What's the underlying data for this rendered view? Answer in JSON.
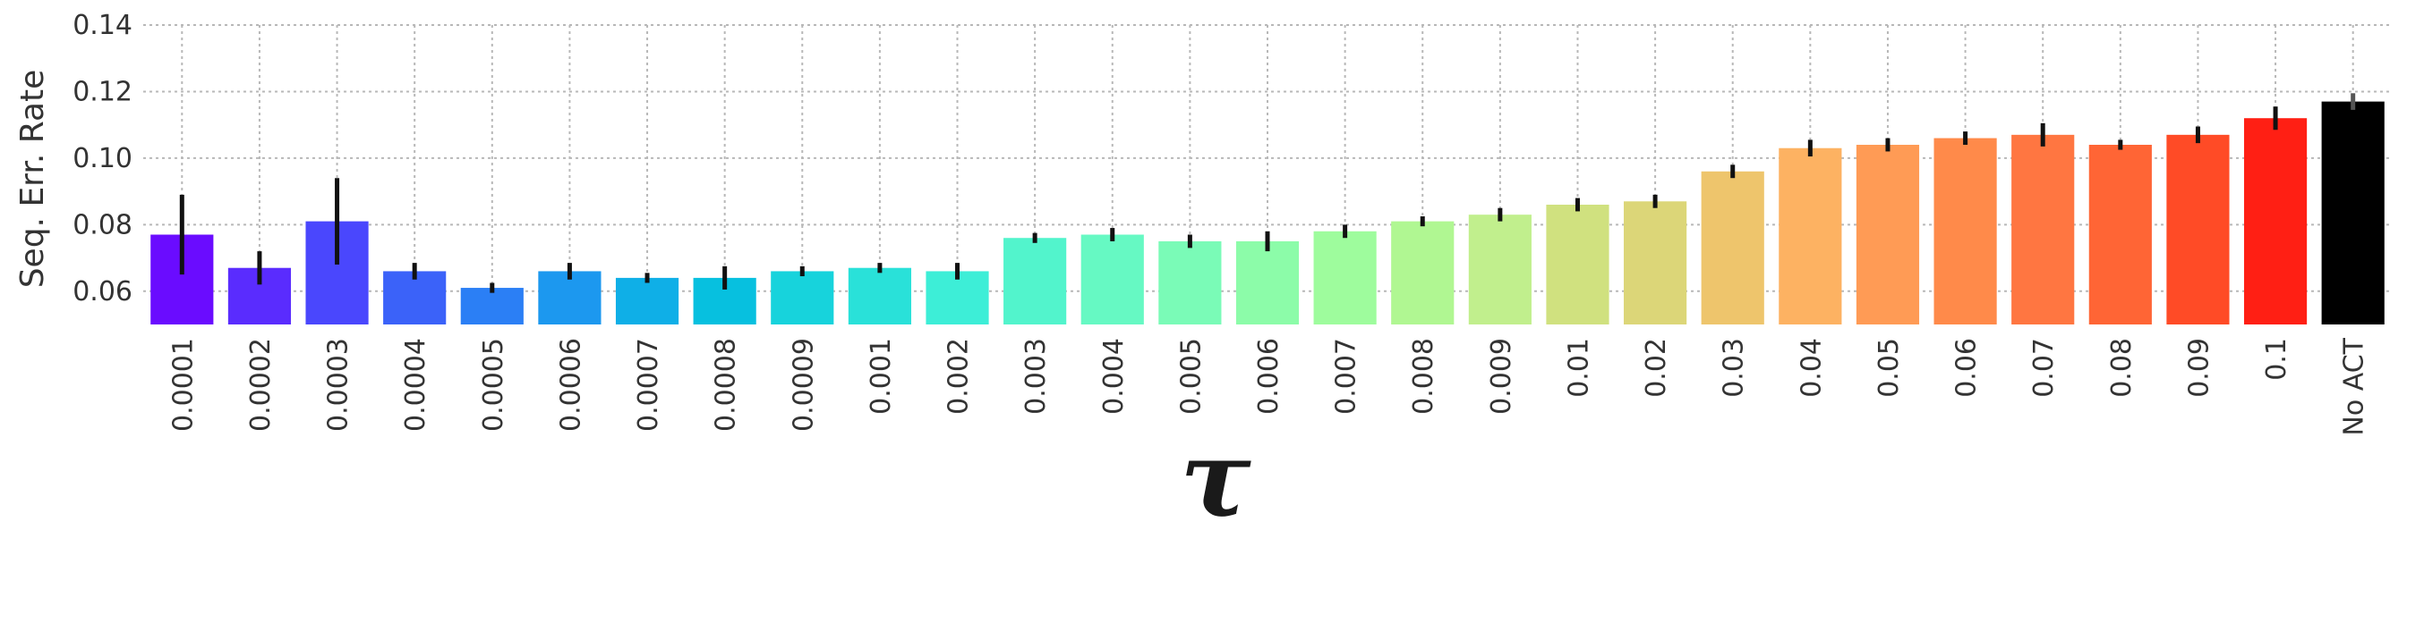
{
  "chart_data": {
    "type": "bar",
    "title": "",
    "xlabel": "τ",
    "ylabel": "Seq. Err. Rate",
    "ylim": [
      0.05,
      0.14
    ],
    "yticks": [
      0.06,
      0.08,
      0.1,
      0.12,
      0.14
    ],
    "ytick_labels": [
      "0.06",
      "0.08",
      "0.10",
      "0.12",
      "0.14"
    ],
    "grid": true,
    "categories": [
      "0.0001",
      "0.0002",
      "0.0003",
      "0.0004",
      "0.0005",
      "0.0006",
      "0.0007",
      "0.0008",
      "0.0009",
      "0.001",
      "0.002",
      "0.003",
      "0.004",
      "0.005",
      "0.006",
      "0.007",
      "0.008",
      "0.009",
      "0.01",
      "0.02",
      "0.03",
      "0.04",
      "0.05",
      "0.06",
      "0.07",
      "0.08",
      "0.09",
      "0.1",
      "No ACT"
    ],
    "values": [
      0.077,
      0.067,
      0.081,
      0.066,
      0.061,
      0.066,
      0.064,
      0.064,
      0.066,
      0.067,
      0.066,
      0.076,
      0.077,
      0.075,
      0.075,
      0.078,
      0.081,
      0.083,
      0.086,
      0.087,
      0.096,
      0.103,
      0.104,
      0.106,
      0.107,
      0.104,
      0.107,
      0.112,
      0.117
    ],
    "errors": [
      0.012,
      0.005,
      0.013,
      0.0025,
      0.0015,
      0.0025,
      0.0015,
      0.0035,
      0.0015,
      0.0015,
      0.0025,
      0.0015,
      0.002,
      0.002,
      0.003,
      0.002,
      0.0015,
      0.002,
      0.002,
      0.002,
      0.002,
      0.0025,
      0.002,
      0.002,
      0.0035,
      0.0015,
      0.0025,
      0.0035,
      0.0025
    ],
    "colors": [
      "#6a0cff",
      "#5a2cfe",
      "#4a47fd",
      "#3b62f9",
      "#2b7ff5",
      "#1c98ef",
      "#0fafe7",
      "#07c0df",
      "#17d3dc",
      "#29e1d9",
      "#3deed7",
      "#52f4cc",
      "#66f9c3",
      "#7afbb7",
      "#8cfca9",
      "#9efc9d",
      "#b0f792",
      "#c1ef8d",
      "#d0e17f",
      "#dcd678",
      "#eec56c",
      "#fdb262",
      "#ff9b55",
      "#ff8a4a",
      "#ff7641",
      "#ff6535",
      "#ff4b26",
      "#ff1f14",
      "#000000"
    ]
  }
}
